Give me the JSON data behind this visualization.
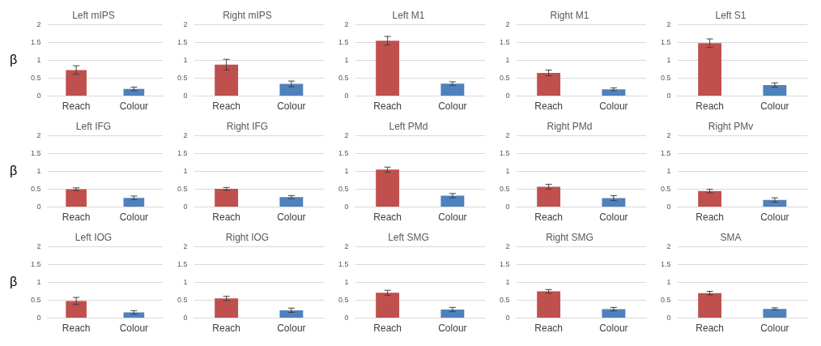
{
  "chart_data": [
    {
      "type": "bar",
      "title": "Left mIPS",
      "ylabel": "β",
      "categories": [
        "Reach",
        "Colour"
      ],
      "values": [
        0.73,
        0.2
      ],
      "errors": [
        0.12,
        0.05
      ],
      "colors": [
        "#c0504d",
        "#4f81bd"
      ],
      "ylim": [
        0,
        2
      ],
      "yticks": [
        0,
        0.5,
        1,
        1.5,
        2
      ],
      "grid": "y"
    },
    {
      "type": "bar",
      "title": "Right mIPS",
      "categories": [
        "Reach",
        "Colour"
      ],
      "values": [
        0.88,
        0.34
      ],
      "errors": [
        0.15,
        0.08
      ],
      "colors": [
        "#c0504d",
        "#4f81bd"
      ],
      "ylim": [
        0,
        2
      ],
      "yticks": [
        0,
        0.5,
        1,
        1.5,
        2
      ],
      "grid": "y"
    },
    {
      "type": "bar",
      "title": "Left M1",
      "categories": [
        "Reach",
        "Colour"
      ],
      "values": [
        1.55,
        0.35
      ],
      "errors": [
        0.12,
        0.05
      ],
      "colors": [
        "#c0504d",
        "#4f81bd"
      ],
      "ylim": [
        0,
        2
      ],
      "yticks": [
        0,
        0.5,
        1,
        1.5,
        2
      ],
      "grid": "y"
    },
    {
      "type": "bar",
      "title": "Right M1",
      "categories": [
        "Reach",
        "Colour"
      ],
      "values": [
        0.65,
        0.19
      ],
      "errors": [
        0.08,
        0.04
      ],
      "colors": [
        "#c0504d",
        "#4f81bd"
      ],
      "ylim": [
        0,
        2
      ],
      "yticks": [
        0,
        0.5,
        1,
        1.5,
        2
      ],
      "grid": "y"
    },
    {
      "type": "bar",
      "title": "Left S1",
      "categories": [
        "Reach",
        "Colour"
      ],
      "values": [
        1.48,
        0.31
      ],
      "errors": [
        0.12,
        0.06
      ],
      "colors": [
        "#c0504d",
        "#4f81bd"
      ],
      "ylim": [
        0,
        2
      ],
      "yticks": [
        0,
        0.5,
        1,
        1.5,
        2
      ],
      "grid": "y"
    },
    {
      "type": "bar",
      "title": "Left IFG",
      "ylabel": "β",
      "categories": [
        "Reach",
        "Colour"
      ],
      "values": [
        0.5,
        0.26
      ],
      "errors": [
        0.04,
        0.05
      ],
      "colors": [
        "#c0504d",
        "#4f81bd"
      ],
      "ylim": [
        0,
        2
      ],
      "yticks": [
        0,
        0.5,
        1,
        1.5,
        2
      ],
      "grid": "y"
    },
    {
      "type": "bar",
      "title": "Right IFG",
      "categories": [
        "Reach",
        "Colour"
      ],
      "values": [
        0.51,
        0.28
      ],
      "errors": [
        0.04,
        0.04
      ],
      "colors": [
        "#c0504d",
        "#4f81bd"
      ],
      "ylim": [
        0,
        2
      ],
      "yticks": [
        0,
        0.5,
        1,
        1.5,
        2
      ],
      "grid": "y"
    },
    {
      "type": "bar",
      "title": "Left PMd",
      "categories": [
        "Reach",
        "Colour"
      ],
      "values": [
        1.05,
        0.32
      ],
      "errors": [
        0.07,
        0.06
      ],
      "colors": [
        "#c0504d",
        "#4f81bd"
      ],
      "ylim": [
        0,
        2
      ],
      "yticks": [
        0,
        0.5,
        1,
        1.5,
        2
      ],
      "grid": "y"
    },
    {
      "type": "bar",
      "title": "Right PMd",
      "categories": [
        "Reach",
        "Colour"
      ],
      "values": [
        0.57,
        0.25
      ],
      "errors": [
        0.07,
        0.07
      ],
      "colors": [
        "#c0504d",
        "#4f81bd"
      ],
      "ylim": [
        0,
        2
      ],
      "yticks": [
        0,
        0.5,
        1,
        1.5,
        2
      ],
      "grid": "y"
    },
    {
      "type": "bar",
      "title": "Right PMv",
      "categories": [
        "Reach",
        "Colour"
      ],
      "values": [
        0.45,
        0.2
      ],
      "errors": [
        0.05,
        0.06
      ],
      "colors": [
        "#c0504d",
        "#4f81bd"
      ],
      "ylim": [
        0,
        2
      ],
      "yticks": [
        0,
        0.5,
        1,
        1.5,
        2
      ],
      "grid": "y"
    },
    {
      "type": "bar",
      "title": "Left IOG",
      "ylabel": "β",
      "categories": [
        "Reach",
        "Colour"
      ],
      "values": [
        0.48,
        0.16
      ],
      "errors": [
        0.1,
        0.05
      ],
      "colors": [
        "#c0504d",
        "#4f81bd"
      ],
      "ylim": [
        0,
        2
      ],
      "yticks": [
        0,
        0.5,
        1,
        1.5,
        2
      ],
      "grid": "y"
    },
    {
      "type": "bar",
      "title": "Right IOG",
      "categories": [
        "Reach",
        "Colour"
      ],
      "values": [
        0.55,
        0.22
      ],
      "errors": [
        0.06,
        0.06
      ],
      "colors": [
        "#c0504d",
        "#4f81bd"
      ],
      "ylim": [
        0,
        2
      ],
      "yticks": [
        0,
        0.5,
        1,
        1.5,
        2
      ],
      "grid": "y"
    },
    {
      "type": "bar",
      "title": "Left SMG",
      "categories": [
        "Reach",
        "Colour"
      ],
      "values": [
        0.71,
        0.24
      ],
      "errors": [
        0.07,
        0.06
      ],
      "colors": [
        "#c0504d",
        "#4f81bd"
      ],
      "ylim": [
        0,
        2
      ],
      "yticks": [
        0,
        0.5,
        1,
        1.5,
        2
      ],
      "grid": "y"
    },
    {
      "type": "bar",
      "title": "Right SMG",
      "categories": [
        "Reach",
        "Colour"
      ],
      "values": [
        0.75,
        0.25
      ],
      "errors": [
        0.05,
        0.05
      ],
      "colors": [
        "#c0504d",
        "#4f81bd"
      ],
      "ylim": [
        0,
        2
      ],
      "yticks": [
        0,
        0.5,
        1,
        1.5,
        2
      ],
      "grid": "y"
    },
    {
      "type": "bar",
      "title": "SMA",
      "categories": [
        "Reach",
        "Colour"
      ],
      "values": [
        0.7,
        0.26
      ],
      "errors": [
        0.05,
        0.03
      ],
      "colors": [
        "#c0504d",
        "#4f81bd"
      ],
      "ylim": [
        0,
        2
      ],
      "yticks": [
        0,
        0.5,
        1,
        1.5,
        2
      ],
      "grid": "y"
    }
  ]
}
